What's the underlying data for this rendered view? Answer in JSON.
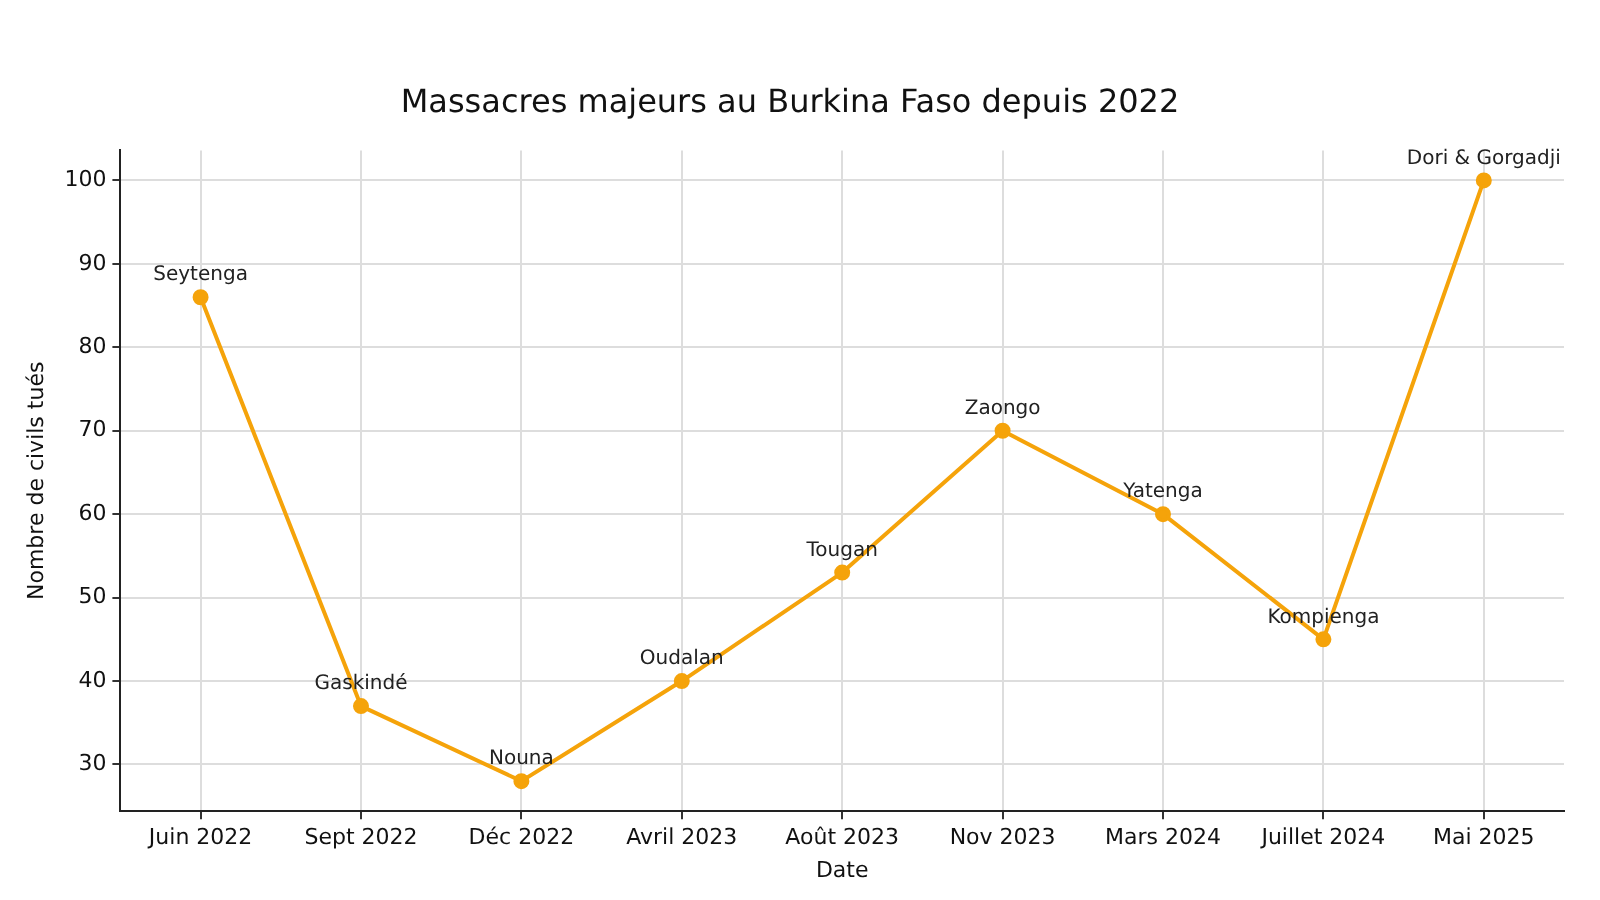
{
  "chart_data": {
    "type": "line",
    "title": "Massacres majeurs au Burkina Faso depuis 2022",
    "xlabel": "Date",
    "ylabel": "Nombre de civils tués",
    "categories": [
      "Juin 2022",
      "Sept 2022",
      "Déc 2022",
      "Avril 2023",
      "Août 2023",
      "Nov 2023",
      "Mars 2024",
      "Juillet 2024",
      "Mai 2025"
    ],
    "series": [
      {
        "color": "#f5a30a",
        "values": [
          86,
          37,
          28,
          40,
          53,
          70,
          60,
          45,
          100
        ]
      }
    ],
    "ylim": [
      24.4,
      103.6
    ],
    "yticks": [
      30,
      40,
      50,
      60,
      70,
      80,
      90,
      100
    ],
    "grid": true,
    "marker": "circle",
    "line_style": "solid",
    "legend": false,
    "annotations": [
      {
        "text": "Seytenga",
        "x": "Juin 2022",
        "y": 86
      },
      {
        "text": "Gaskindé",
        "x": "Sept 2022",
        "y": 37
      },
      {
        "text": "Nouna",
        "x": "Déc 2022",
        "y": 28
      },
      {
        "text": "Oudalan",
        "x": "Avril 2023",
        "y": 40
      },
      {
        "text": "Tougan",
        "x": "Août 2023",
        "y": 53
      },
      {
        "text": "Zaongo",
        "x": "Nov 2023",
        "y": 70
      },
      {
        "text": "Yatenga",
        "x": "Mars 2024",
        "y": 60
      },
      {
        "text": "Kompienga",
        "x": "Juillet 2024",
        "y": 45
      },
      {
        "text": "Dori & Gorgadji",
        "x": "Mai 2025",
        "y": 100
      }
    ]
  }
}
